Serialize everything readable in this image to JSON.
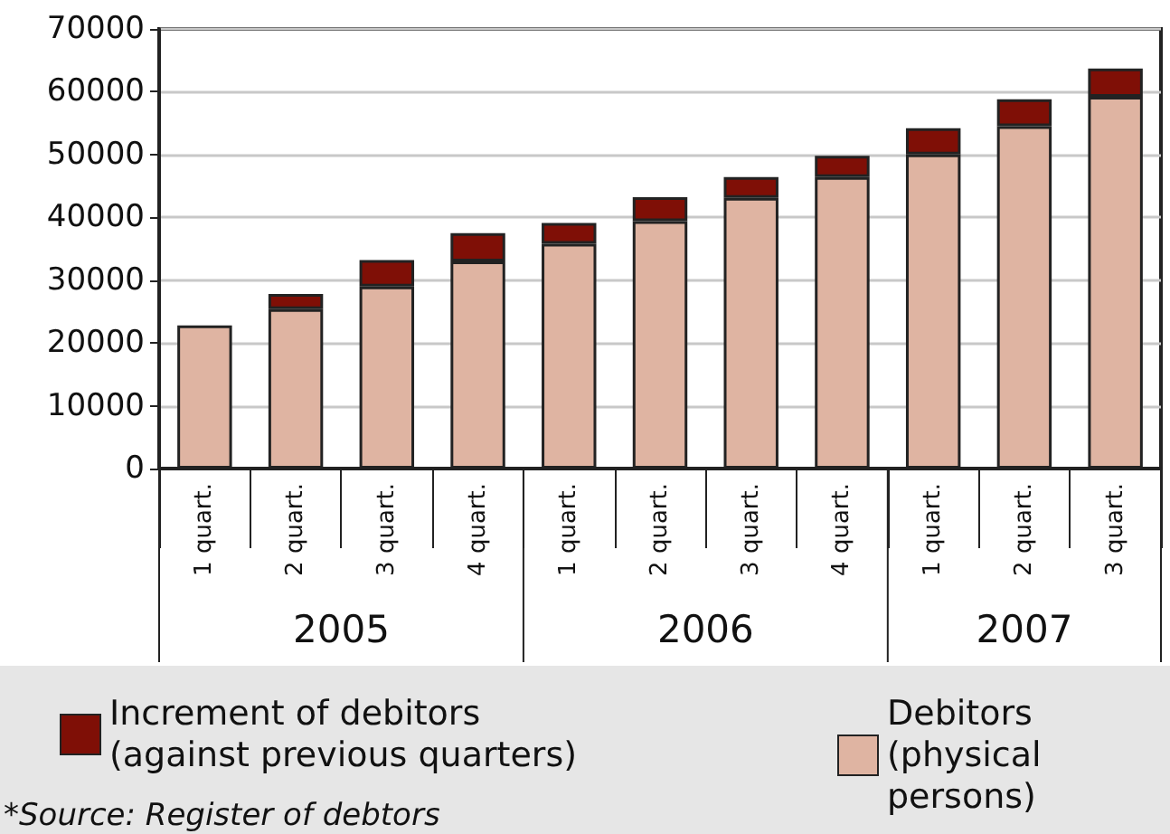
{
  "chart_data": {
    "type": "bar",
    "stacked": true,
    "categories": [
      "1 quart.",
      "2 quart.",
      "3 quart.",
      "4 quart.",
      "1 quart.",
      "2 quart.",
      "3 quart.",
      "4 quart.",
      "1 quart.",
      "2 quart.",
      "3 quart."
    ],
    "series": [
      {
        "name": "Debitors (physical persons)",
        "color": "#dfb4a2",
        "values": [
          22800,
          25400,
          29000,
          33000,
          35800,
          39400,
          43100,
          46400,
          50000,
          54500,
          59200
        ]
      },
      {
        "name": "Increment of debitors (against previous quarters)",
        "color": "#7f0f06",
        "values": [
          null,
          2400,
          4200,
          4500,
          3300,
          3800,
          3300,
          3400,
          4200,
          4300,
          4500
        ]
      }
    ],
    "ylim": [
      0,
      70000
    ],
    "yticks": [
      0,
      10000,
      20000,
      30000,
      40000,
      50000,
      60000,
      70000
    ],
    "grid": "y",
    "legend": "bottom",
    "annotations": [
      "2005",
      "2006",
      "2007",
      "*Source: Register of debtors"
    ]
  }
}
